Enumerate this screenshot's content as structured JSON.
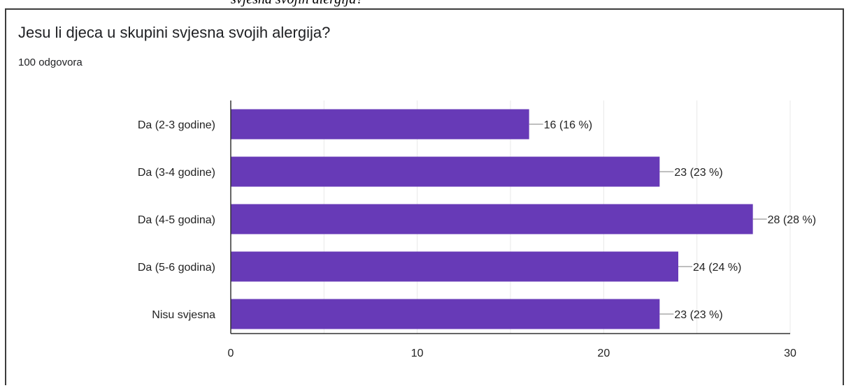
{
  "caption_fragment": "svjesna svojih alergija?",
  "card": {
    "title": "Jesu li djeca u skupini svjesna svojih alergija?",
    "subtitle": "100 odgovora"
  },
  "colors": {
    "bar": "#673ab7",
    "grid": "#e8e8e8",
    "axis": "#333333",
    "text": "#222222",
    "leader": "#999999"
  },
  "chart_data": {
    "type": "bar",
    "orientation": "horizontal",
    "title": "Jesu li djeca u skupini svjesna svojih alergija?",
    "subtitle": "100 odgovora",
    "categories": [
      "Da (2-3 godine)",
      "Da (3-4 godine)",
      "Da (4-5 godina)",
      "Da (5-6 godina)",
      "Nisu svjesna"
    ],
    "values": [
      16,
      23,
      28,
      24,
      23
    ],
    "data_labels": [
      "16 (16 %)",
      "23 (23 %)",
      "28 (28 %)",
      "24 (24 %)",
      "23 (23 %)"
    ],
    "xlim": [
      0,
      30
    ],
    "xticks": [
      0,
      10,
      20,
      30
    ],
    "grid": true,
    "legend": "none"
  }
}
